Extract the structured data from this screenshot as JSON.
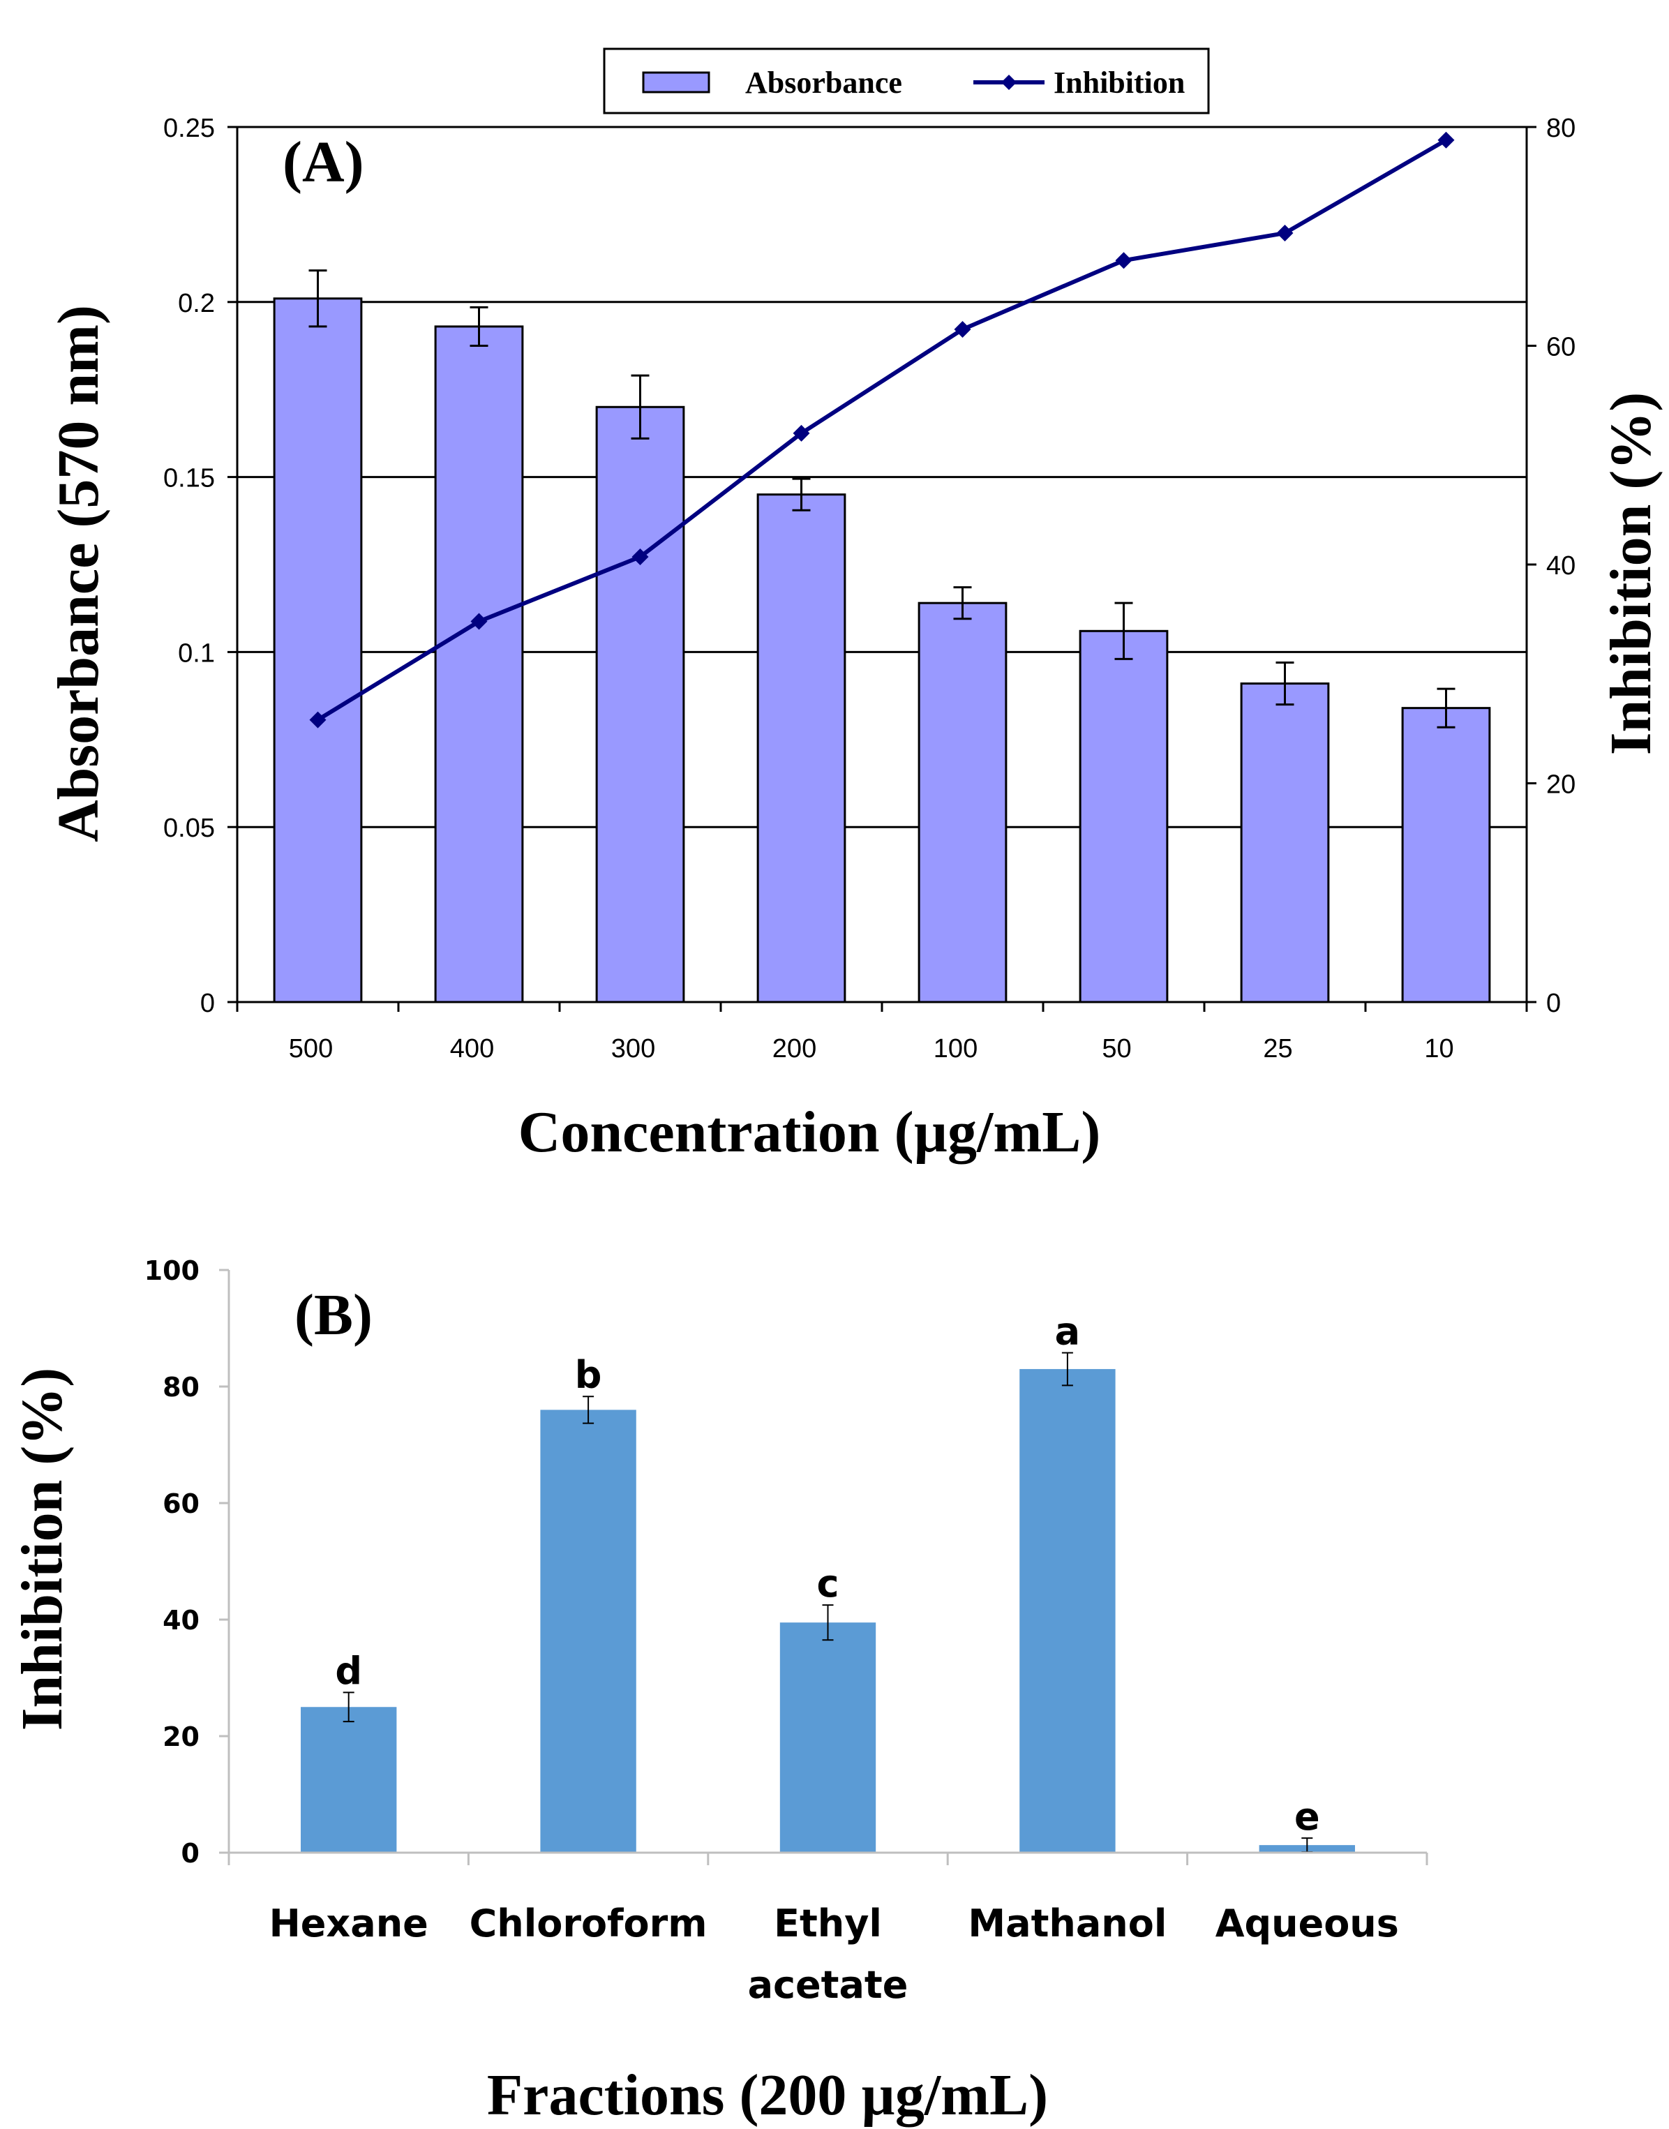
{
  "chart_data": [
    {
      "panel_label": "(A)",
      "type": "bar",
      "title": "",
      "xlabel": "Concentration (µg/mL)",
      "ylabel": "Absorbance (570 nm)",
      "y2label": "Inhibition (%)",
      "categories": [
        "500",
        "400",
        "300",
        "200",
        "100",
        "50",
        "25",
        "10"
      ],
      "ylim": [
        0,
        0.25
      ],
      "yticks": [
        "0",
        "0.05",
        "0.1",
        "0.15",
        "0.2",
        "0.25"
      ],
      "y2lim": [
        0,
        80
      ],
      "y2ticks": [
        "0",
        "20",
        "40",
        "60",
        "80"
      ],
      "grid": true,
      "legend_position": "top",
      "series": [
        {
          "name": "Absorbance",
          "kind": "bar",
          "axis": "left",
          "color": "#9999ff",
          "values": [
            0.201,
            0.193,
            0.17,
            0.145,
            0.114,
            0.106,
            0.091,
            0.084
          ],
          "errors": [
            0.008,
            0.0055,
            0.009,
            0.0045,
            0.0045,
            0.008,
            0.006,
            0.0055
          ]
        },
        {
          "name": "Inhibition",
          "kind": "line",
          "axis": "right",
          "color": "#000080",
          "values": [
            25.8,
            34.8,
            40.7,
            52.0,
            61.5,
            67.8,
            70.3,
            78.8
          ]
        }
      ]
    },
    {
      "panel_label": "(B)",
      "type": "bar",
      "title": "",
      "xlabel": "Fractions (200 µg/mL)",
      "ylabel": "Inhibition (%)",
      "categories": [
        [
          "Hexane"
        ],
        [
          "Chloroform"
        ],
        [
          "Ethyl",
          "acetate"
        ],
        [
          "Mathanol"
        ],
        [
          "Aqueous"
        ]
      ],
      "ylim": [
        0,
        100
      ],
      "yticks": [
        "0",
        "20",
        "40",
        "60",
        "80",
        "100"
      ],
      "grid": false,
      "series": [
        {
          "name": "Inhibition",
          "color": "#5b9bd5",
          "values": [
            25.0,
            76.0,
            39.5,
            83.0,
            1.3
          ],
          "errors": [
            2.5,
            2.3,
            3.0,
            2.8,
            1.2
          ],
          "labels": [
            "d",
            "b",
            "c",
            "a",
            "e"
          ]
        }
      ]
    }
  ]
}
